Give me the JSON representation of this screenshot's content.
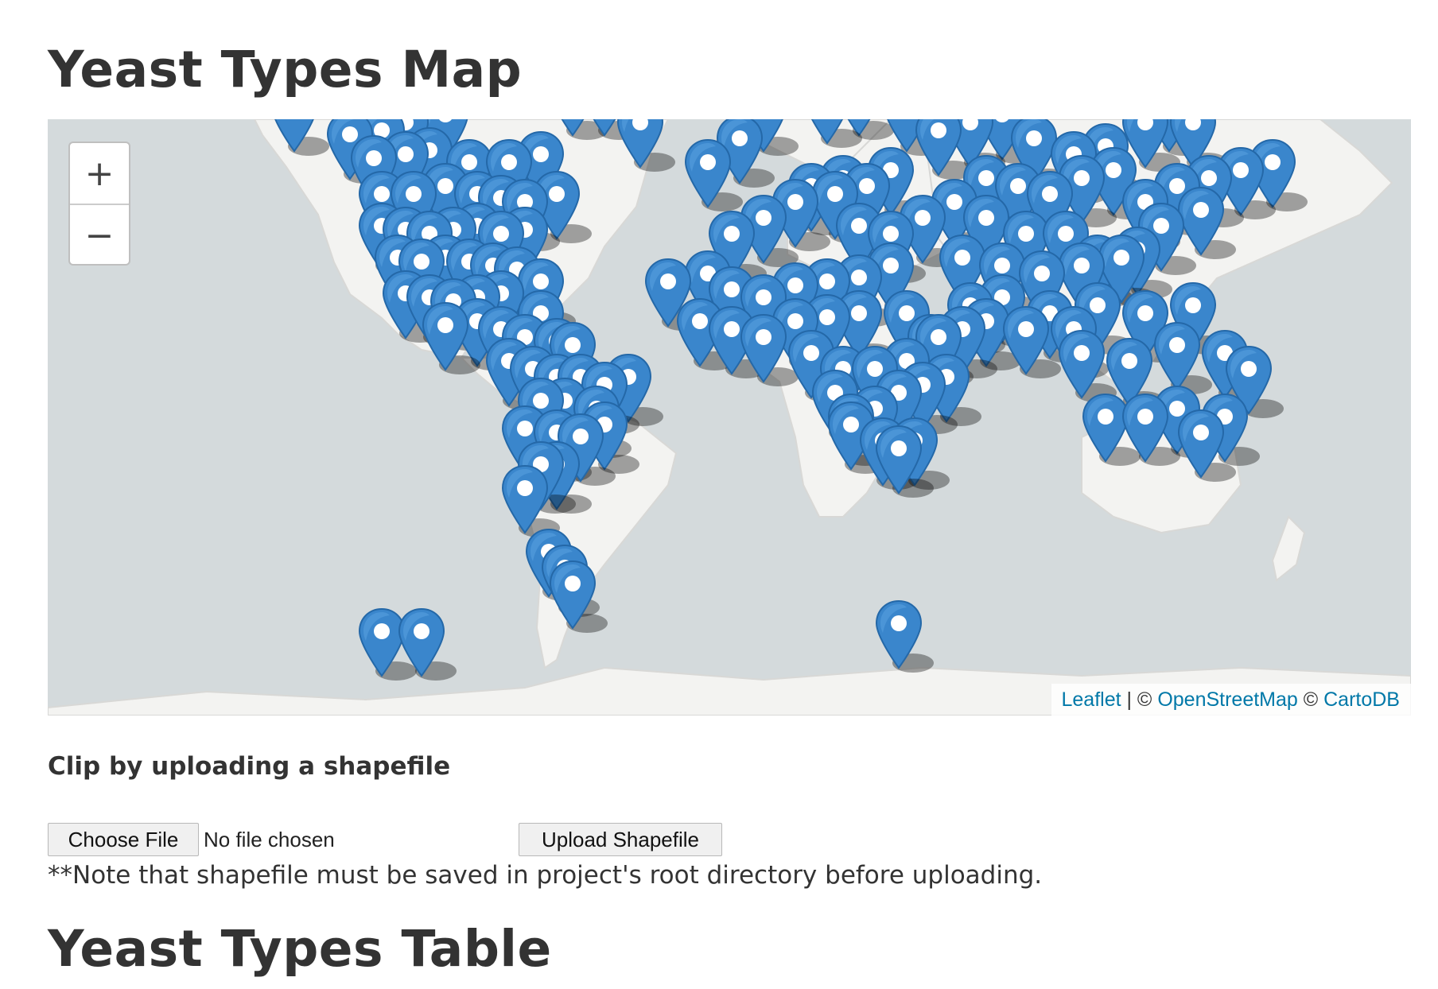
{
  "page": {
    "map_title": "Yeast Types Map",
    "table_title": "Yeast Types Table"
  },
  "map": {
    "zoom_in_label": "+",
    "zoom_out_label": "−",
    "attribution": {
      "leaflet": "Leaflet",
      "sep": " | © ",
      "osm": "OpenStreetMap",
      "sep2": " © ",
      "carto": "CartoDB"
    },
    "marker_color": "#3a86cc",
    "marker_icon": "map-marker-icon"
  },
  "upload": {
    "heading": "Clip by uploading a shapefile",
    "choose_label": "Choose File",
    "file_status": "No file chosen",
    "upload_label": "Upload Shapefile",
    "note": "**Note that shapefile must be saved in project's root directory before uploading."
  }
}
